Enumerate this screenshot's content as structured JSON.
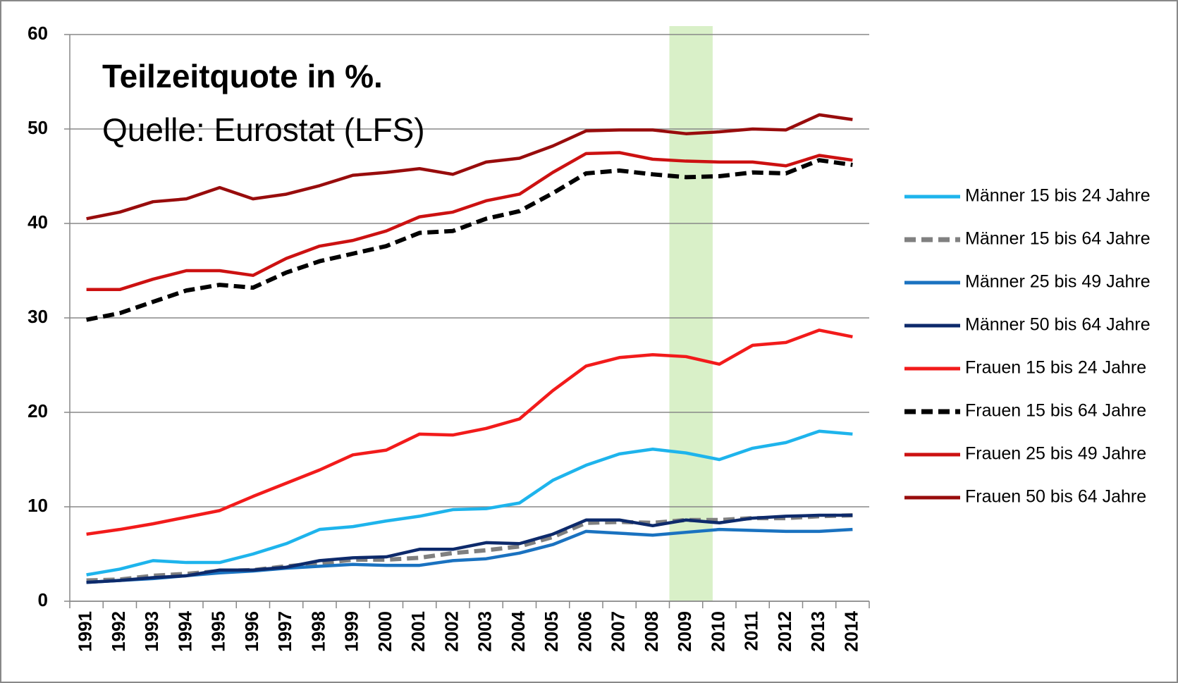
{
  "chart_data": {
    "type": "line",
    "title": "Teilzeitquote in %.",
    "subtitle": "Quelle: Eurostat (LFS)",
    "categories": [
      "1991",
      "1992",
      "1993",
      "1994",
      "1995",
      "1996",
      "1997",
      "1998",
      "1999",
      "2000",
      "2001",
      "2002",
      "2003",
      "2004",
      "2005",
      "2006",
      "2007",
      "2008",
      "2009",
      "2010",
      "2011",
      "2012",
      "2013",
      "2014"
    ],
    "ylim": [
      0,
      60
    ],
    "yticks": [
      0,
      10,
      20,
      30,
      40,
      50,
      60
    ],
    "grid": true,
    "legend": "right",
    "series": [
      {
        "name": "Männer 15 bis 24 Jahre",
        "color": "#1eb4ec",
        "dashed": false,
        "values": [
          2.8,
          3.4,
          4.3,
          4.1,
          4.1,
          5.0,
          6.1,
          7.6,
          7.9,
          8.5,
          9.0,
          9.7,
          9.8,
          10.4,
          12.8,
          14.4,
          15.6,
          16.1,
          15.7,
          15.0,
          16.2,
          16.8,
          18.0,
          17.7
        ]
      },
      {
        "name": "Männer 15 bis 64 Jahre",
        "color": "#808080",
        "dashed": true,
        "values": [
          2.2,
          2.3,
          2.7,
          2.9,
          3.2,
          3.3,
          3.7,
          4.0,
          4.4,
          4.4,
          4.6,
          5.1,
          5.4,
          5.8,
          6.8,
          8.3,
          8.4,
          8.3,
          8.6,
          8.6,
          8.8,
          8.8,
          9.0,
          9.1
        ]
      },
      {
        "name": "Männer 25 bis 49 Jahre",
        "color": "#1a72c0",
        "dashed": false,
        "values": [
          2.0,
          2.2,
          2.4,
          2.7,
          3.0,
          3.2,
          3.5,
          3.7,
          3.9,
          3.8,
          3.8,
          4.3,
          4.5,
          5.1,
          6.0,
          7.4,
          7.2,
          7.0,
          7.3,
          7.6,
          7.5,
          7.4,
          7.4,
          7.6
        ]
      },
      {
        "name": "Männer 50 bis 64 Jahre",
        "color": "#0d2a6b",
        "dashed": false,
        "values": [
          2.0,
          2.2,
          2.5,
          2.7,
          3.3,
          3.3,
          3.6,
          4.3,
          4.6,
          4.7,
          5.5,
          5.5,
          6.2,
          6.1,
          7.1,
          8.6,
          8.6,
          8.0,
          8.6,
          8.3,
          8.8,
          9.0,
          9.1,
          9.1
        ]
      },
      {
        "name": "Frauen 15 bis 24 Jahre",
        "color": "#f21b1b",
        "dashed": false,
        "values": [
          7.1,
          7.6,
          8.2,
          8.9,
          9.6,
          11.1,
          12.5,
          13.9,
          15.5,
          16.0,
          17.7,
          17.6,
          18.3,
          19.3,
          22.3,
          24.9,
          25.8,
          26.1,
          25.9,
          25.1,
          27.1,
          27.4,
          28.7,
          28.0
        ]
      },
      {
        "name": "Frauen 15 bis 64 Jahre",
        "color": "#000000",
        "dashed": true,
        "values": [
          29.8,
          30.5,
          31.7,
          32.9,
          33.5,
          33.2,
          34.8,
          36.0,
          36.8,
          37.6,
          39.0,
          39.2,
          40.5,
          41.3,
          43.2,
          45.3,
          45.6,
          45.2,
          44.9,
          45.0,
          45.4,
          45.3,
          46.7,
          46.2
        ]
      },
      {
        "name": "Frauen 25 bis 49 Jahre",
        "color": "#cc1111",
        "dashed": false,
        "values": [
          33.0,
          33.0,
          34.1,
          35.0,
          35.0,
          34.5,
          36.3,
          37.6,
          38.2,
          39.2,
          40.7,
          41.2,
          42.4,
          43.1,
          45.4,
          47.4,
          47.5,
          46.8,
          46.6,
          46.5,
          46.5,
          46.1,
          47.2,
          46.7
        ]
      },
      {
        "name": "Frauen 50 bis 64 Jahre",
        "color": "#980c0c",
        "dashed": false,
        "values": [
          40.5,
          41.2,
          42.3,
          42.6,
          43.8,
          42.6,
          43.1,
          44.0,
          45.1,
          45.4,
          45.8,
          45.2,
          46.5,
          46.9,
          48.2,
          49.8,
          49.9,
          49.9,
          49.5,
          49.7,
          50.0,
          49.9,
          51.5,
          51.0
        ]
      }
    ]
  }
}
